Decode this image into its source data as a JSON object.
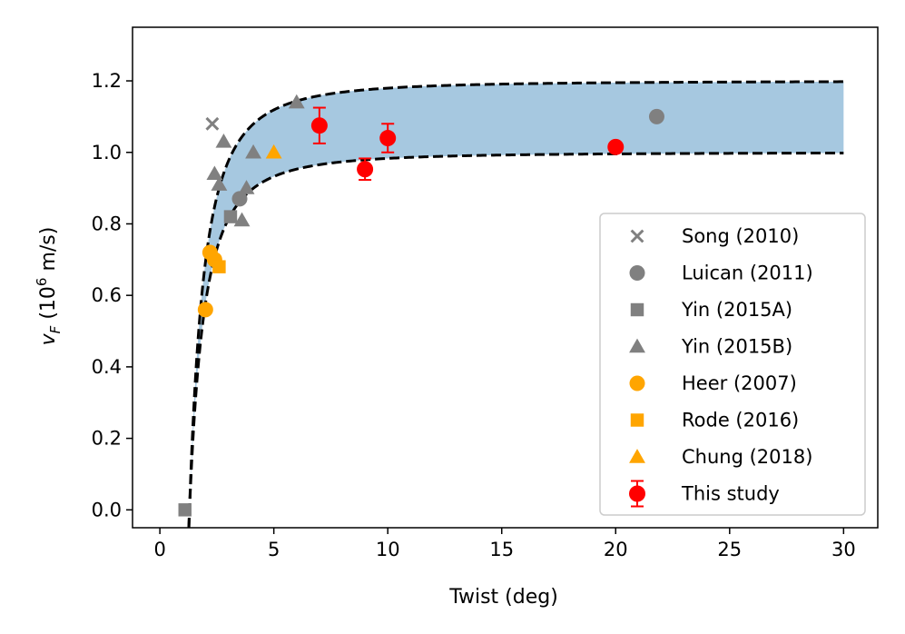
{
  "chart_data": {
    "type": "scatter",
    "xlabel": "Twist (deg)",
    "ylabel": {
      "main": "v",
      "sub": "F",
      "unit_open": " (10",
      "unit_exp": "6",
      "unit_close": " m/s)"
    },
    "xlim": [
      -1.2,
      31.5
    ],
    "ylim": [
      -0.05,
      1.35
    ],
    "xticks": [
      0,
      5,
      10,
      15,
      20,
      25,
      30
    ],
    "yticks": [
      0.0,
      0.2,
      0.4,
      0.6,
      0.8,
      1.0,
      1.2
    ],
    "xtick_labels": [
      "0",
      "5",
      "10",
      "15",
      "20",
      "25",
      "30"
    ],
    "ytick_labels": [
      "0.0",
      "0.2",
      "0.4",
      "0.6",
      "0.8",
      "1.0",
      "1.2"
    ],
    "band": {
      "theta0": 1.3,
      "upper_asymptote": 1.2,
      "lower_asymptote": 1.0,
      "x_max": 30,
      "fill_color": "#a6c8e0",
      "line_color": "#000000",
      "line_style": "dashed"
    },
    "legend_position": "lower-right",
    "series": [
      {
        "name": "Song (2010)",
        "marker": "x",
        "color": "#808080",
        "points": [
          [
            2.3,
            1.08
          ]
        ]
      },
      {
        "name": "Luican (2011)",
        "marker": "circle",
        "color": "#808080",
        "points": [
          [
            3.5,
            0.87
          ],
          [
            21.8,
            1.1
          ]
        ]
      },
      {
        "name": "Yin (2015A)",
        "marker": "square",
        "color": "#808080",
        "points": [
          [
            1.1,
            0.0
          ],
          [
            3.1,
            0.82
          ]
        ]
      },
      {
        "name": "Yin (2015B)",
        "marker": "triangle",
        "color": "#808080",
        "points": [
          [
            2.4,
            0.94
          ],
          [
            2.6,
            0.91
          ],
          [
            2.8,
            1.03
          ],
          [
            3.6,
            0.81
          ],
          [
            3.8,
            0.9
          ],
          [
            4.1,
            1.0
          ],
          [
            6.0,
            1.14
          ]
        ]
      },
      {
        "name": "Heer (2007)",
        "marker": "circle",
        "color": "#ffa500",
        "points": [
          [
            2.0,
            0.56
          ],
          [
            2.2,
            0.72
          ],
          [
            2.4,
            0.7
          ]
        ]
      },
      {
        "name": "Rode (2016)",
        "marker": "square",
        "color": "#ffa500",
        "points": [
          [
            2.6,
            0.68
          ]
        ]
      },
      {
        "name": "Chung (2018)",
        "marker": "triangle",
        "color": "#ffa500",
        "points": [
          [
            5.0,
            1.0
          ]
        ]
      },
      {
        "name": "This study",
        "marker": "circle-errorbar",
        "color": "#ff0000",
        "points": [
          [
            7.0,
            1.075,
            0.05
          ],
          [
            9.0,
            0.953,
            0.03
          ],
          [
            10.0,
            1.04,
            0.04
          ],
          [
            20.0,
            1.015,
            0.0
          ]
        ]
      }
    ]
  }
}
